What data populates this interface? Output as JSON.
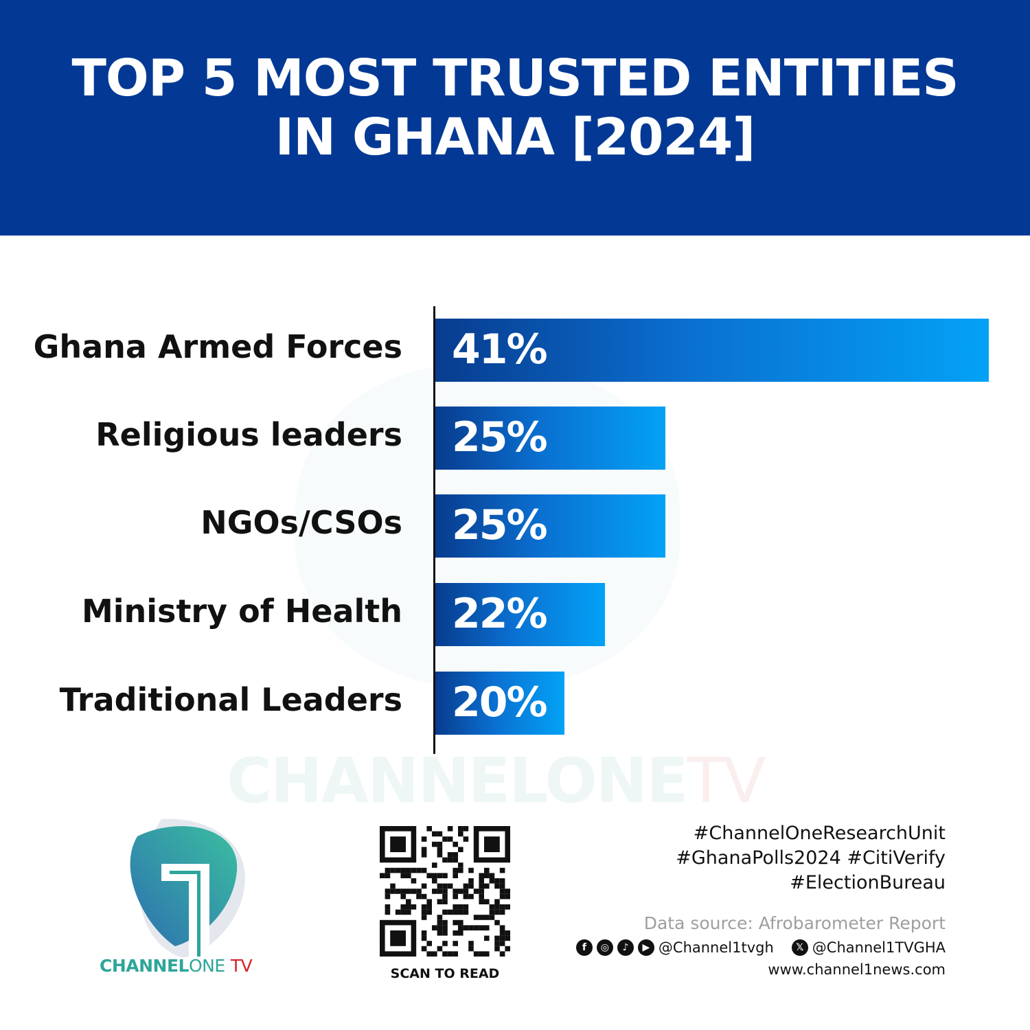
{
  "header": {
    "title_line1": "TOP 5 MOST TRUSTED ENTITIES",
    "title_line2": "IN GHANA [2024]",
    "background": "#033994"
  },
  "chart_data": {
    "type": "bar",
    "orientation": "horizontal",
    "title": "TOP 5 MOST TRUSTED ENTITIES IN GHANA [2024]",
    "categories": [
      "Ghana Armed Forces",
      "Religious leaders",
      "NGOs/CSOs",
      "Ministry of Health",
      "Traditional Leaders"
    ],
    "values": [
      41,
      25,
      25,
      22,
      20
    ],
    "value_labels": [
      "41%",
      "25%",
      "25%",
      "22%",
      "20%"
    ],
    "unit": "%",
    "grid": false,
    "bar_gradient": [
      "#083c8e",
      "#03a2f6"
    ]
  },
  "watermark": {
    "part1": "CHANNELONE",
    "part2": "TV"
  },
  "logo": {
    "bold": "CHANNEL",
    "light": "ONE",
    "tv": "TV",
    "colors": {
      "teal": "#2ea59a",
      "red": "#d2232a"
    }
  },
  "qr": {
    "caption": "SCAN TO READ"
  },
  "footer": {
    "hashtags": [
      "#ChannelOneResearchUnit",
      "#GhanaPolls2024 #CitiVerify",
      "#ElectionBureau"
    ],
    "source": "Data source: Afrobarometer Report",
    "social_icons": [
      "facebook-icon",
      "instagram-icon",
      "tiktok-icon",
      "youtube-icon"
    ],
    "handle1": "@Channel1tvgh",
    "handle2": "@Channel1TVGHA",
    "website": "www.channel1news.com"
  }
}
